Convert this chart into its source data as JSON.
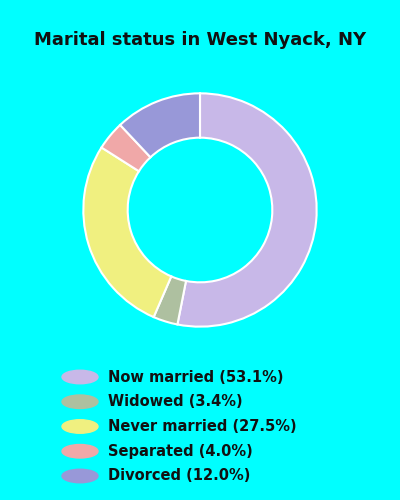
{
  "title": "Marital status in West Nyack, NY",
  "slices": [
    {
      "label": "Now married (53.1%)",
      "value": 53.1,
      "color": "#c8b8e8"
    },
    {
      "label": "Widowed (3.4%)",
      "value": 3.4,
      "color": "#aec0a0"
    },
    {
      "label": "Never married (27.5%)",
      "value": 27.5,
      "color": "#f0f080"
    },
    {
      "label": "Separated (4.0%)",
      "value": 4.0,
      "color": "#f0a8a8"
    },
    {
      "label": "Divorced (12.0%)",
      "value": 12.0,
      "color": "#9898d8"
    }
  ],
  "bg_cyan": "#00ffff",
  "bg_chart": "#d8eed8",
  "title_color": "#111111",
  "title_fontsize": 13,
  "legend_fontsize": 10.5,
  "donut_width": 0.38
}
